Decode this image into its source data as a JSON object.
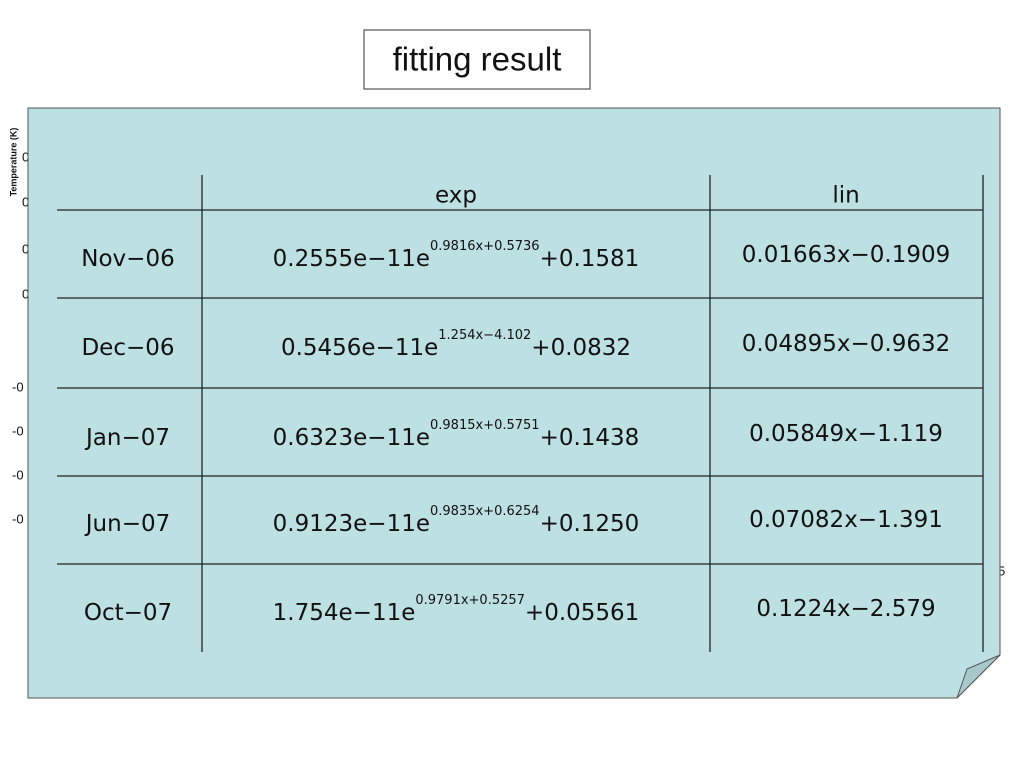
{
  "title": "fitting result",
  "background": {
    "axis_label": "Temperature (K)",
    "tick_fragments": [
      "0",
      "0",
      "0",
      "0",
      "-0",
      "-0",
      "-0",
      "-0",
      "5"
    ]
  },
  "table": {
    "columns": [
      "exp",
      "lin"
    ],
    "rows": [
      {
        "label": "Nov−06",
        "exp": {
          "base": "0.2555e−11e",
          "exponent": "0.9816x+0.5736",
          "offset": "+0.1581"
        },
        "lin": "0.01663x−0.1909"
      },
      {
        "label": "Dec−06",
        "exp": {
          "base": "0.5456e−11e",
          "exponent": "1.254x−4.102",
          "offset": "+0.0832"
        },
        "lin": "0.04895x−0.9632"
      },
      {
        "label": "Jan−07",
        "exp": {
          "base": "0.6323e−11e",
          "exponent": "0.9815x+0.5751",
          "offset": "+0.1438"
        },
        "lin": "0.05849x−1.119"
      },
      {
        "label": "Jun−07",
        "exp": {
          "base": "0.9123e−11e",
          "exponent": "0.9835x+0.6254",
          "offset": "+0.1250"
        },
        "lin": "0.07082x−1.391"
      },
      {
        "label": "Oct−07",
        "exp": {
          "base": "1.754e−11e",
          "exponent": "0.9791x+0.5257",
          "offset": "+0.05561"
        },
        "lin": "0.1224x−2.579"
      }
    ]
  }
}
